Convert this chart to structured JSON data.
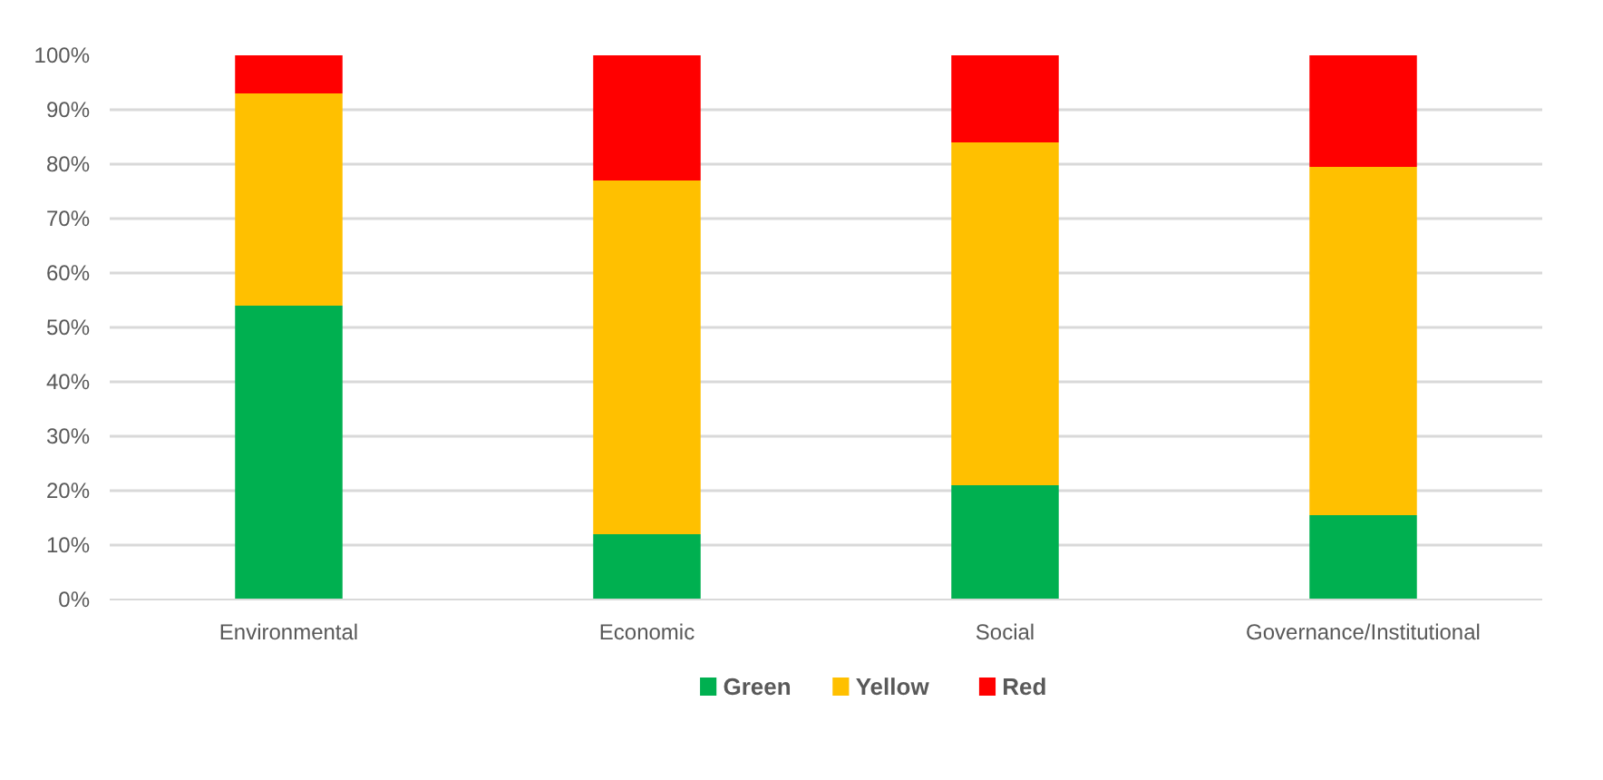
{
  "chart_data": {
    "type": "bar",
    "stacked": true,
    "categories": [
      "Environmental",
      "Economic",
      "Social",
      "Governance/Institutional"
    ],
    "series": [
      {
        "name": "Green",
        "color": "#00b050",
        "values": [
          54,
          12,
          21,
          15.5
        ]
      },
      {
        "name": "Yellow",
        "color": "#ffc000",
        "values": [
          39,
          65,
          63,
          64
        ]
      },
      {
        "name": "Red",
        "color": "#ff0000",
        "values": [
          7,
          23,
          16,
          20.5
        ]
      }
    ],
    "ylim": [
      0,
      100
    ],
    "yticks": [
      {
        "value": 0,
        "label": "0%"
      },
      {
        "value": 10,
        "label": "10%"
      },
      {
        "value": 20,
        "label": "20%"
      },
      {
        "value": 30,
        "label": "30%"
      },
      {
        "value": 40,
        "label": "40%"
      },
      {
        "value": 50,
        "label": "50%"
      },
      {
        "value": 60,
        "label": "60%"
      },
      {
        "value": 70,
        "label": "70%"
      },
      {
        "value": 80,
        "label": "80%"
      },
      {
        "value": 90,
        "label": "90%"
      },
      {
        "value": 100,
        "label": "100%"
      }
    ],
    "grid": "y",
    "legend": "bottom"
  }
}
